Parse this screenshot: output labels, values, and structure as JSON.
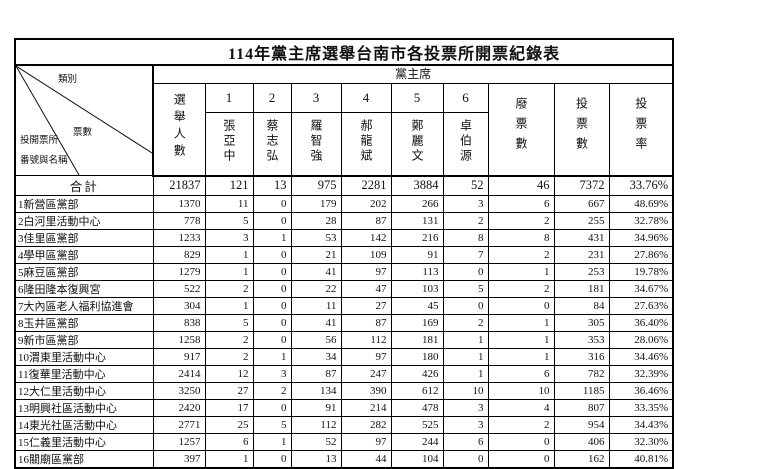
{
  "title": "114年黨主席選舉台南市各投票所開票紀錄表",
  "header": {
    "corner_category": "類別",
    "corner_votes": "票數",
    "corner_station_line1": "投開票所",
    "corner_station_line2": "番號與名稱",
    "band_label": "黨主席",
    "electors_label": "選舉人數",
    "invalid_label": "廢票數",
    "votes_label": "投票數",
    "rate_label": "投票率",
    "candidates": [
      {
        "num": "1",
        "name": "張亞中"
      },
      {
        "num": "2",
        "name": "蔡志弘"
      },
      {
        "num": "3",
        "name": "羅智強"
      },
      {
        "num": "4",
        "name": "郝龍斌"
      },
      {
        "num": "5",
        "name": "鄭麗文"
      },
      {
        "num": "6",
        "name": "卓伯源"
      }
    ]
  },
  "total_row": {
    "label": "合計",
    "values": [
      "21837",
      "121",
      "13",
      "975",
      "2281",
      "3884",
      "52",
      "46",
      "7372",
      "33.76%"
    ]
  },
  "rows": [
    {
      "name": "1新營區黨部",
      "values": [
        "1370",
        "11",
        "0",
        "179",
        "202",
        "266",
        "3",
        "6",
        "667",
        "48.69%"
      ]
    },
    {
      "name": "2白河里活動中心",
      "values": [
        "778",
        "5",
        "0",
        "28",
        "87",
        "131",
        "2",
        "2",
        "255",
        "32.78%"
      ]
    },
    {
      "name": "3佳里區黨部",
      "values": [
        "1233",
        "3",
        "1",
        "53",
        "142",
        "216",
        "8",
        "8",
        "431",
        "34.96%"
      ]
    },
    {
      "name": "4學甲區黨部",
      "values": [
        "829",
        "1",
        "0",
        "21",
        "109",
        "91",
        "7",
        "2",
        "231",
        "27.86%"
      ]
    },
    {
      "name": "5麻豆區黨部",
      "values": [
        "1279",
        "1",
        "0",
        "41",
        "97",
        "113",
        "0",
        "1",
        "253",
        "19.78%"
      ]
    },
    {
      "name": "6隆田隆本復興宮",
      "values": [
        "522",
        "2",
        "0",
        "22",
        "47",
        "103",
        "5",
        "2",
        "181",
        "34.67%"
      ]
    },
    {
      "name": "7大內區老人福利協進會",
      "values": [
        "304",
        "1",
        "0",
        "11",
        "27",
        "45",
        "0",
        "0",
        "84",
        "27.63%"
      ]
    },
    {
      "name": "8玉井區黨部",
      "values": [
        "838",
        "5",
        "0",
        "41",
        "87",
        "169",
        "2",
        "1",
        "305",
        "36.40%"
      ]
    },
    {
      "name": "9新市區黨部",
      "values": [
        "1258",
        "2",
        "0",
        "56",
        "112",
        "181",
        "1",
        "1",
        "353",
        "28.06%"
      ]
    },
    {
      "name": "10渭東里活動中心",
      "values": [
        "917",
        "2",
        "1",
        "34",
        "97",
        "180",
        "1",
        "1",
        "316",
        "34.46%"
      ]
    },
    {
      "name": "11復華里活動中心",
      "values": [
        "2414",
        "12",
        "3",
        "87",
        "247",
        "426",
        "1",
        "6",
        "782",
        "32.39%"
      ]
    },
    {
      "name": "12大仁里活動中心",
      "values": [
        "3250",
        "27",
        "2",
        "134",
        "390",
        "612",
        "10",
        "10",
        "1185",
        "36.46%"
      ]
    },
    {
      "name": "13明興社區活動中心",
      "values": [
        "2420",
        "17",
        "0",
        "91",
        "214",
        "478",
        "3",
        "4",
        "807",
        "33.35%"
      ]
    },
    {
      "name": "14東光社區活動中心",
      "values": [
        "2771",
        "25",
        "5",
        "112",
        "282",
        "525",
        "3",
        "2",
        "954",
        "34.43%"
      ]
    },
    {
      "name": "15仁義里活動中心",
      "values": [
        "1257",
        "6",
        "1",
        "52",
        "97",
        "244",
        "6",
        "0",
        "406",
        "32.30%"
      ]
    },
    {
      "name": "16關廟區黨部",
      "values": [
        "397",
        "1",
        "0",
        "13",
        "44",
        "104",
        "0",
        "0",
        "162",
        "40.81%"
      ]
    }
  ]
}
